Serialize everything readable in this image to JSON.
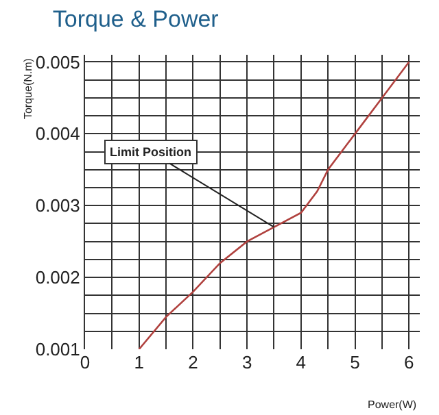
{
  "chart_data": {
    "type": "line",
    "title": "Torque & Power",
    "xlabel": "Power(W)",
    "ylabel": "Torque(N.m)",
    "x": [
      1,
      1.5,
      2,
      2.5,
      3,
      3.5,
      4,
      4.3,
      4.5,
      5,
      5.5,
      6
    ],
    "series": [
      {
        "color": "#b0413e",
        "values": [
          0.001,
          0.00145,
          0.0018,
          0.0022,
          0.0025,
          0.0027,
          0.0029,
          0.0032,
          0.0035,
          0.004,
          0.0045,
          0.005
        ]
      }
    ],
    "annotations": [
      {
        "text": "Limit Position",
        "x": 3.5,
        "y": 0.0027
      }
    ],
    "xlim": [
      0,
      6.2
    ],
    "ylim": [
      0.001,
      0.0051
    ],
    "xticks": [
      0,
      {
        "value": 0.5,
        "label": null
      },
      1,
      {
        "value": 1.5,
        "label": null
      },
      2,
      {
        "value": 2.5,
        "label": null
      },
      3,
      {
        "value": 3.5,
        "label": null
      },
      4,
      {
        "value": 4.5,
        "label": null
      },
      5,
      {
        "value": 5.5,
        "label": null
      },
      6
    ],
    "yticks": [
      0.001,
      {
        "value": 0.00125,
        "label": null
      },
      {
        "value": 0.0015,
        "label": null
      },
      {
        "value": 0.00175,
        "label": null
      },
      0.002,
      {
        "value": 0.00225,
        "label": null
      },
      {
        "value": 0.0025,
        "label": null
      },
      {
        "value": 0.00275,
        "label": null
      },
      0.003,
      {
        "value": 0.00325,
        "label": null
      },
      {
        "value": 0.0035,
        "label": null
      },
      {
        "value": 0.00375,
        "label": null
      },
      0.004,
      {
        "value": 0.00425,
        "label": null
      },
      {
        "value": 0.0045,
        "label": null
      },
      {
        "value": 0.00475,
        "label": null
      },
      0.005
    ],
    "grid": true,
    "marker": "none",
    "line_style": "solid"
  }
}
